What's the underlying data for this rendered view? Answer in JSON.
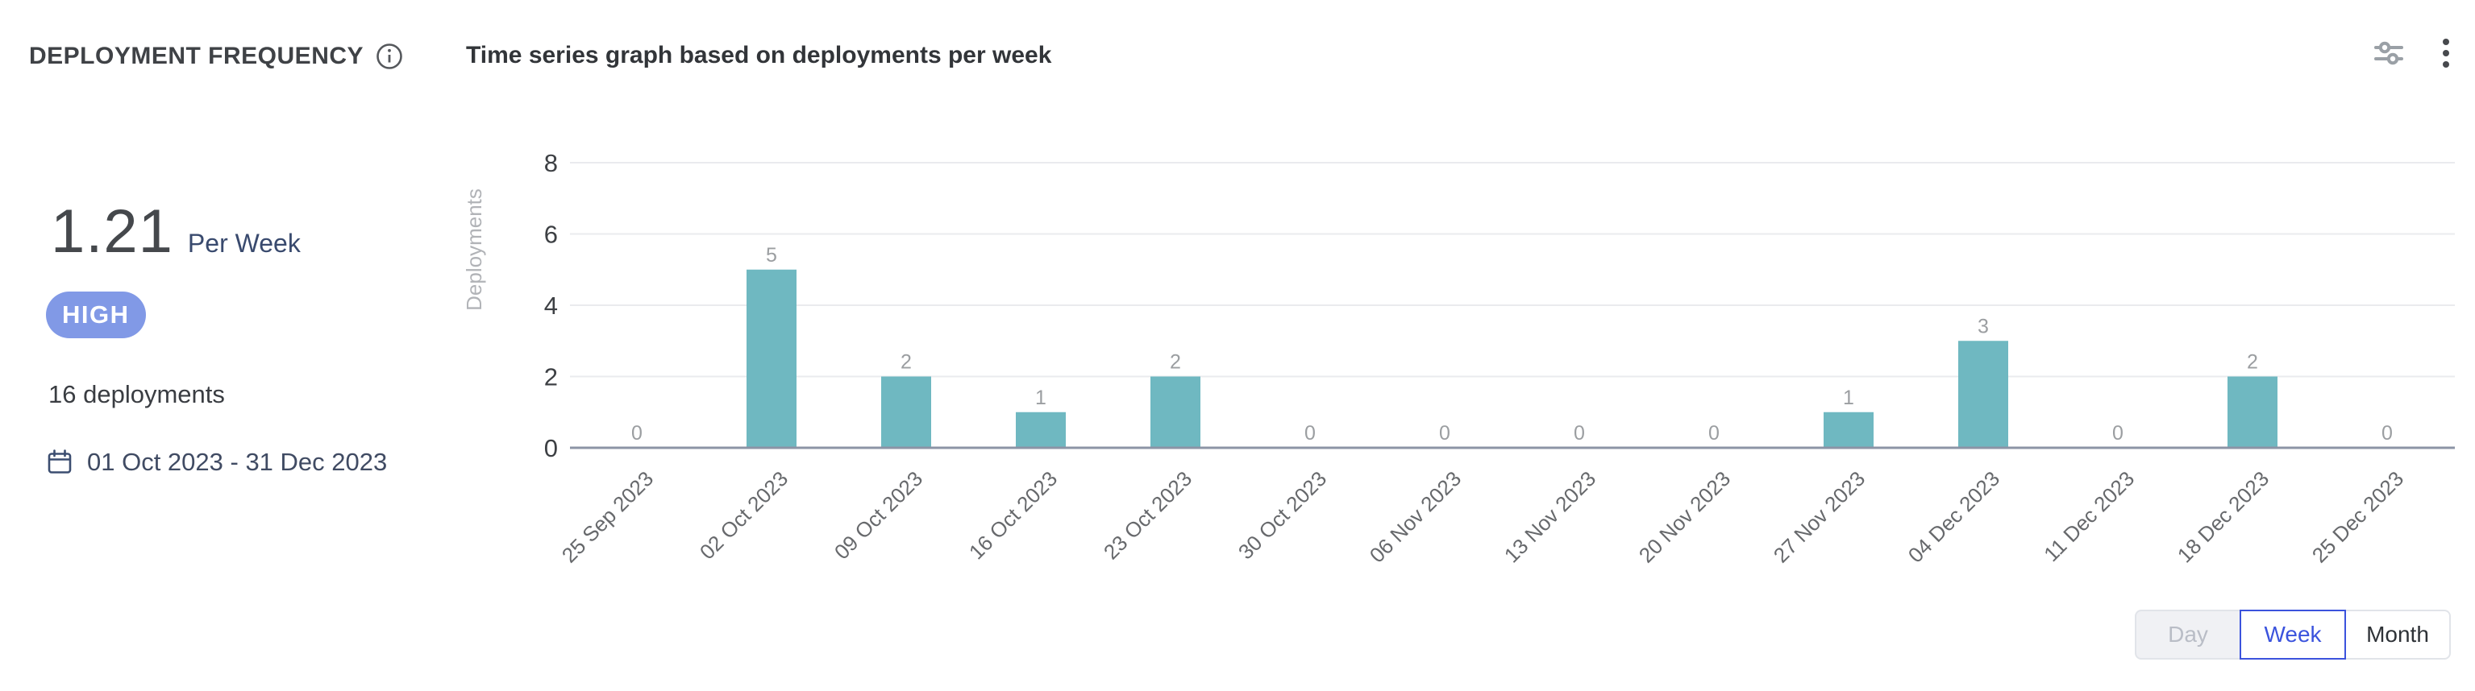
{
  "header": {
    "title": "DEPLOYMENT FREQUENCY"
  },
  "chart": {
    "title": "Time series graph based on deployments per week"
  },
  "summary": {
    "value": "1.21",
    "unit": "Per Week",
    "badge_label": "HIGH",
    "total_label": "16 deployments",
    "date_range": "01 Oct 2023 - 31 Dec 2023"
  },
  "icons": {
    "header_info": "info-circle",
    "date": "calendar",
    "toolbar": [
      "sliders-horizontal",
      "kebab-vertical-menu"
    ]
  },
  "colors": {
    "bar": "#6fb8c1",
    "badge_bg": "#8199e6",
    "toggle_active": "#3b53dd",
    "axis_line": "#8c94a6",
    "gridline": "#eaebee"
  },
  "chart_data": {
    "type": "bar",
    "title": "Time series graph based on deployments per week",
    "categories": [
      "25 Sep 2023",
      "02 Oct 2023",
      "09 Oct 2023",
      "16 Oct 2023",
      "23 Oct 2023",
      "30 Oct 2023",
      "06 Nov 2023",
      "13 Nov 2023",
      "20 Nov 2023",
      "27 Nov 2023",
      "04 Dec 2023",
      "11 Dec 2023",
      "18 Dec 2023",
      "25 Dec 2023"
    ],
    "values": [
      0,
      5,
      2,
      1,
      2,
      0,
      0,
      0,
      0,
      1,
      3,
      0,
      2,
      0
    ],
    "xlabel": "",
    "ylabel": "Deployments",
    "ylim": [
      0,
      8
    ],
    "yticks": [
      0,
      2,
      4,
      6,
      8
    ],
    "grid": true,
    "legend": "none",
    "value_labels": true,
    "bar_color": "#6fb8c1"
  },
  "granularity_toggle": {
    "options": [
      {
        "label": "Day",
        "state": "disabled"
      },
      {
        "label": "Week",
        "state": "selected"
      },
      {
        "label": "Month",
        "state": "default"
      }
    ]
  }
}
